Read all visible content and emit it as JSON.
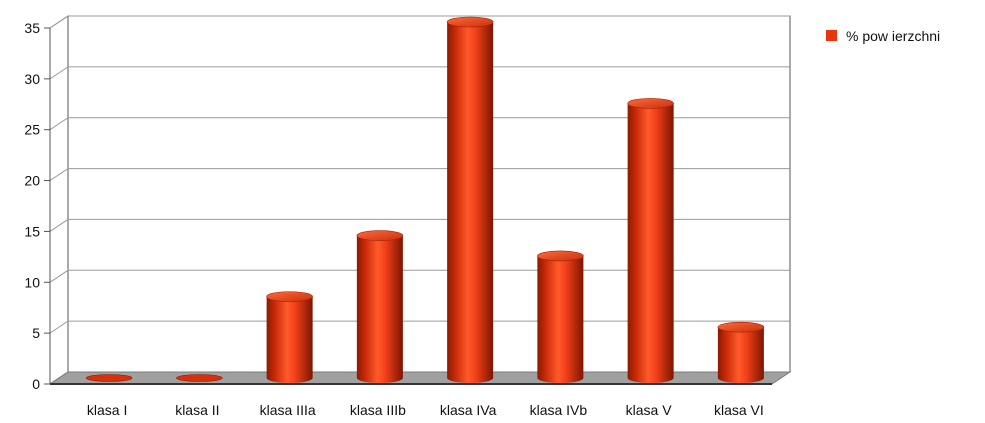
{
  "chart_data": {
    "type": "bar",
    "style": "3d-cylinder",
    "categories": [
      "klasa I",
      "klasa II",
      "klasa IIIa",
      "klasa IIIb",
      "klasa IVa",
      "klasa IVb",
      "klasa V",
      "klasa VI"
    ],
    "series": [
      {
        "name": "% pow ierzchni",
        "values": [
          0,
          0,
          8,
          14,
          35,
          12,
          27,
          5
        ],
        "color": "#e8340f"
      }
    ],
    "ylim": [
      0,
      35
    ],
    "yticks": [
      0,
      5,
      10,
      15,
      20,
      25,
      30,
      35
    ],
    "grid": true,
    "legend": "top-right",
    "colors": {
      "floor": "#a0a0a0",
      "wall": "#ffffff",
      "grid": "#9a9a9a",
      "axis": "#555555"
    }
  }
}
